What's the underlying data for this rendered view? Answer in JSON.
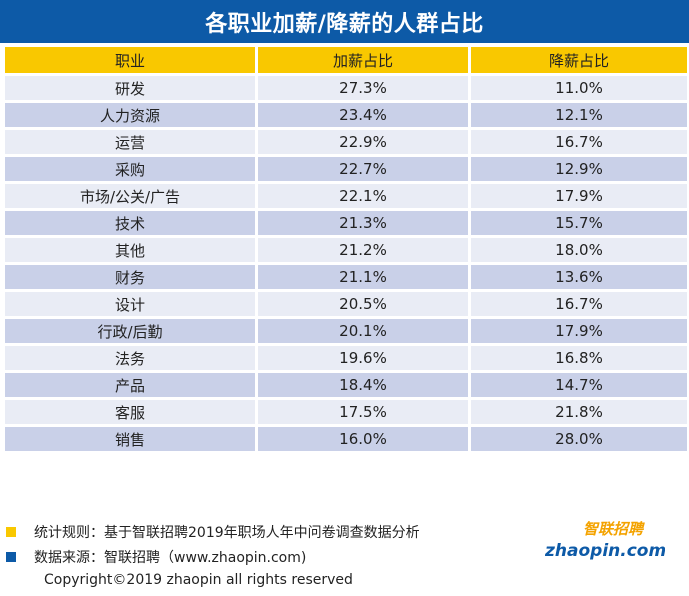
{
  "title": "各职业加薪/降薪的人群占比",
  "columns": [
    "职业",
    "加薪占比",
    "降薪占比"
  ],
  "chart_data": {
    "type": "table",
    "title": "各职业加薪/降薪的人群占比",
    "columns": [
      "职业",
      "加薪占比",
      "降薪占比"
    ],
    "rows": [
      [
        "研发",
        "27.3%",
        "11.0%"
      ],
      [
        "人力资源",
        "23.4%",
        "12.1%"
      ],
      [
        "运营",
        "22.9%",
        "16.7%"
      ],
      [
        "采购",
        "22.7%",
        "12.9%"
      ],
      [
        "市场/公关/广告",
        "22.1%",
        "17.9%"
      ],
      [
        "技术",
        "21.3%",
        "15.7%"
      ],
      [
        "其他",
        "21.2%",
        "18.0%"
      ],
      [
        "财务",
        "21.1%",
        "13.6%"
      ],
      [
        "设计",
        "20.5%",
        "16.7%"
      ],
      [
        "行政/后勤",
        "20.1%",
        "17.9%"
      ],
      [
        "法务",
        "19.6%",
        "16.8%"
      ],
      [
        "产品",
        "18.4%",
        "14.7%"
      ],
      [
        "客服",
        "17.5%",
        "21.8%"
      ],
      [
        "销售",
        "16.0%",
        "28.0%"
      ]
    ]
  },
  "notes": [
    {
      "text": "统计规则：基于智联招聘2019年职场人年中问卷调查数据分析",
      "color": "#f9c800"
    },
    {
      "text": "数据来源：智联招聘（www.zhaopin.com)",
      "color": "#0d5aa7"
    }
  ],
  "copyright": "Copyright©2019 zhaopin all rights reserved",
  "logo": {
    "brand": "智联招聘",
    "domain": "zhaopin.com"
  },
  "colors": {
    "title_bg": "#0d5aa7",
    "header_bg": "#f9c800",
    "row_light": "#e9ecf5",
    "row_dark": "#c9d0e8"
  }
}
